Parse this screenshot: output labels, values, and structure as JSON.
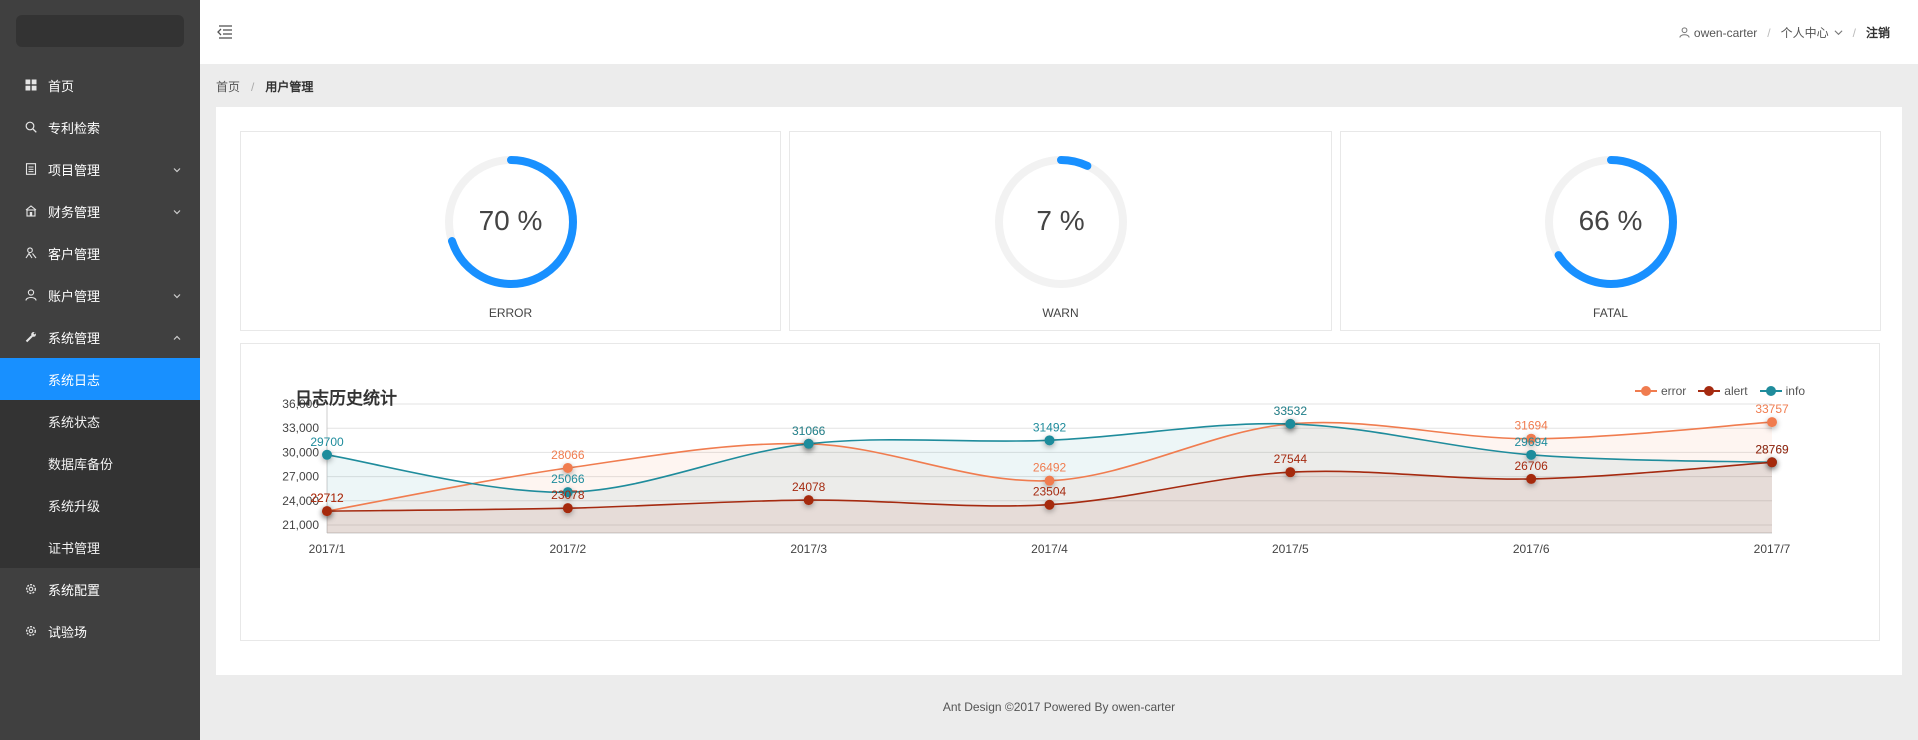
{
  "sidebar": {
    "items": [
      {
        "label": "首页",
        "icon": "dashboard-icon",
        "name": "sidebar-item-home",
        "arrow": null
      },
      {
        "label": "专利检索",
        "icon": "search-icon",
        "name": "sidebar-item-patent-search",
        "arrow": null
      },
      {
        "label": "项目管理",
        "icon": "file-icon",
        "name": "sidebar-item-project",
        "arrow": "down"
      },
      {
        "label": "财务管理",
        "icon": "bank-icon",
        "name": "sidebar-item-finance",
        "arrow": "down"
      },
      {
        "label": "客户管理",
        "icon": "customer-icon",
        "name": "sidebar-item-customer",
        "arrow": null
      },
      {
        "label": "账户管理",
        "icon": "user-icon",
        "name": "sidebar-item-account",
        "arrow": "down"
      },
      {
        "label": "系统管理",
        "icon": "tool-icon",
        "name": "sidebar-item-system",
        "arrow": "up"
      }
    ],
    "sub_items": [
      {
        "label": "系统日志",
        "name": "sidebar-subitem-system-log",
        "active": true
      },
      {
        "label": "系统状态",
        "name": "sidebar-subitem-system-status",
        "active": false
      },
      {
        "label": "数据库备份",
        "name": "sidebar-subitem-db-backup",
        "active": false
      },
      {
        "label": "系统升级",
        "name": "sidebar-subitem-system-upgrade",
        "active": false
      },
      {
        "label": "证书管理",
        "name": "sidebar-subitem-certificate",
        "active": false
      }
    ],
    "bottom_items": [
      {
        "label": "系统配置",
        "icon": "setting-icon",
        "name": "sidebar-item-config"
      },
      {
        "label": "试验场",
        "icon": "setting-icon",
        "name": "sidebar-item-playground"
      }
    ]
  },
  "header": {
    "username": "owen-carter",
    "personal_center": "个人中心",
    "logout": "注销"
  },
  "breadcrumb": {
    "home": "首页",
    "current": "用户管理"
  },
  "gauges": [
    {
      "percent": 70,
      "text": "70 %",
      "label": "ERROR"
    },
    {
      "percent": 7,
      "text": "7 %",
      "label": "WARN"
    },
    {
      "percent": 66,
      "text": "66 %",
      "label": "FATAL"
    }
  ],
  "colors": {
    "accent": "#1890ff",
    "sidebar_bg": "#404040",
    "error": "#f07c4f",
    "alert": "#a52a10",
    "info": "#1f8c9c",
    "gauge_track": "#f2f2f2"
  },
  "chart_data": {
    "type": "line",
    "title": "日志历史统计",
    "categories": [
      "2017/1",
      "2017/2",
      "2017/3",
      "2017/4",
      "2017/5",
      "2017/6",
      "2017/7"
    ],
    "series": [
      {
        "name": "error",
        "values": [
          22712,
          28066,
          31066,
          26492,
          33532,
          31694,
          33757
        ]
      },
      {
        "name": "alert",
        "values": [
          22712,
          23078,
          24078,
          23504,
          27544,
          26706,
          28769
        ]
      },
      {
        "name": "info",
        "values": [
          29700,
          25066,
          31066,
          31492,
          33532,
          29694,
          28769
        ]
      }
    ],
    "ylim": [
      20000,
      36000
    ],
    "yticks": [
      "21,000",
      "24,000",
      "27,000",
      "30,000",
      "33,000",
      "36,000"
    ],
    "grid": true,
    "legend_position": "top-right",
    "area": true,
    "smooth": true
  },
  "footer": {
    "text": "Ant Design ©2017 Powered By owen-carter"
  }
}
